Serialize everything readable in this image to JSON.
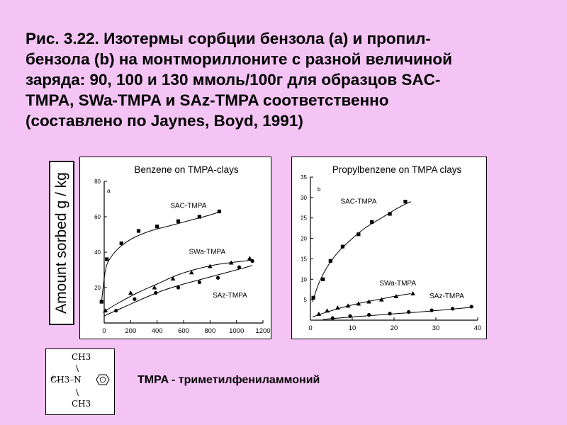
{
  "caption_lines": [
    "Рис. 3.22. Изотермы сорбции бензола (а) и пропил-",
    "бензола (b) на монтмориллоните с разной величиной",
    "заряда: 90, 100 и 130 ммоль/100г для образцов SAC-",
    "TMPA, SWa-TMPA и  SAz-TMPA соответственно",
    "(составлено по Jaynes, Boyd, 1991)"
  ],
  "y_axis_shared_label": "Amount sorbed  g / kg",
  "formula": {
    "top": "CH3",
    "middle_left": "CH3–N",
    "charge": "+",
    "bottom": "CH3",
    "ring": "benzene-ring-icon"
  },
  "tmpa_note": "TMPA - триметилфениламмоний",
  "chart_data": [
    {
      "type": "scatter",
      "title": "Benzene on TMPA-clays",
      "panel_letter": "a",
      "xlim": [
        0,
        1200
      ],
      "ylim": [
        0,
        80
      ],
      "xticks": [
        0,
        200,
        400,
        600,
        800,
        1000,
        1200
      ],
      "yticks": [
        0,
        20,
        40,
        60,
        80
      ],
      "xtick_labels": [
        "0",
        "200",
        "400",
        "600",
        "800",
        "1000",
        "1200"
      ],
      "ytick_labels": [
        "",
        "20",
        "40",
        "60",
        "80"
      ],
      "series": [
        {
          "name": "SAC-TMPA",
          "marker": "square",
          "points": [
            [
              -20,
              12
            ],
            [
              20,
              36
            ],
            [
              130,
              45
            ],
            [
              260,
              52
            ],
            [
              400,
              54.5
            ],
            [
              560,
              57.5
            ],
            [
              720,
              60
            ],
            [
              870,
              63
            ]
          ],
          "curve": [
            [
              -20,
              12
            ],
            [
              10,
              30
            ],
            [
              50,
              37
            ],
            [
              120,
              43
            ],
            [
              220,
              48
            ],
            [
              350,
              52
            ],
            [
              500,
              55
            ],
            [
              650,
              58
            ],
            [
              800,
              61
            ],
            [
              880,
              63
            ]
          ],
          "label": {
            "text": "SAC-TMPA",
            "x": 500,
            "y": 65
          }
        },
        {
          "name": "SWa-TMPA",
          "marker": "triangle",
          "points": [
            [
              10,
              7
            ],
            [
              200,
              17
            ],
            [
              380,
              20
            ],
            [
              520,
              25
            ],
            [
              660,
              28.5
            ],
            [
              800,
              32
            ],
            [
              960,
              34
            ],
            [
              1100,
              36.5
            ]
          ],
          "curve": [
            [
              -10,
              6
            ],
            [
              100,
              11
            ],
            [
              250,
              17
            ],
            [
              400,
              22
            ],
            [
              550,
              27
            ],
            [
              700,
              30.5
            ],
            [
              850,
              33
            ],
            [
              1000,
              34.5
            ],
            [
              1120,
              35.5
            ]
          ],
          "label": {
            "text": "SWa-TMPA",
            "x": 640,
            "y": 39
          }
        },
        {
          "name": "SAz-TMPA",
          "marker": "circle",
          "points": [
            [
              90,
              7
            ],
            [
              230,
              13.5
            ],
            [
              390,
              17
            ],
            [
              560,
              20
            ],
            [
              720,
              23
            ],
            [
              860,
              25.5
            ],
            [
              1020,
              31.5
            ],
            [
              1120,
              35
            ]
          ],
          "curve": [
            [
              0,
              4
            ],
            [
              150,
              9
            ],
            [
              300,
              14
            ],
            [
              450,
              18.5
            ],
            [
              600,
              22
            ],
            [
              750,
              25
            ],
            [
              900,
              28
            ],
            [
              1050,
              31
            ],
            [
              1120,
              32.5
            ]
          ],
          "label": {
            "text": "SAz-TMPA",
            "x": 820,
            "y": 14.5
          }
        }
      ]
    },
    {
      "type": "scatter",
      "title": "Propylbenzene on TMPA clays",
      "panel_letter": "b",
      "xlim": [
        0,
        40
      ],
      "ylim": [
        0,
        35
      ],
      "xticks": [
        0,
        10,
        20,
        30,
        40
      ],
      "yticks": [
        0,
        5,
        10,
        15,
        20,
        25,
        30,
        35
      ],
      "xtick_labels": [
        "0",
        "10",
        "20",
        "30",
        "40"
      ],
      "ytick_labels": [
        "",
        "5",
        "10",
        "15",
        "20",
        "25",
        "30",
        "35"
      ],
      "series": [
        {
          "name": "SAC-TMPA",
          "marker": "square",
          "points": [
            [
              0.7,
              5.5
            ],
            [
              3,
              10
            ],
            [
              4.8,
              14.5
            ],
            [
              7.7,
              18
            ],
            [
              11.5,
              21
            ],
            [
              14.7,
              24
            ],
            [
              19,
              26
            ],
            [
              22.7,
              29
            ]
          ],
          "curve": [
            [
              0.5,
              4.5
            ],
            [
              2,
              9
            ],
            [
              4,
              13
            ],
            [
              6.5,
              16.5
            ],
            [
              9.5,
              19.5
            ],
            [
              13,
              22.5
            ],
            [
              17,
              25
            ],
            [
              21,
              27.5
            ],
            [
              24,
              29
            ]
          ],
          "label": {
            "text": "SAC-TMPA",
            "x": 7.2,
            "y": 28.5
          }
        },
        {
          "name": "SWa-TMPA",
          "marker": "triangle",
          "points": [
            [
              2,
              1.5
            ],
            [
              4,
              2.3
            ],
            [
              6.5,
              3
            ],
            [
              9,
              3.5
            ],
            [
              11.5,
              4
            ],
            [
              14,
              4.5
            ],
            [
              17,
              5
            ],
            [
              20.5,
              5.8
            ],
            [
              24.5,
              6.5
            ]
          ],
          "curve": [
            [
              0.5,
              0.8
            ],
            [
              4,
              2
            ],
            [
              8,
              3.2
            ],
            [
              12,
              4.2
            ],
            [
              16,
              5
            ],
            [
              20,
              5.8
            ],
            [
              24,
              6.5
            ]
          ],
          "label": {
            "text": "SWa-TMPA",
            "x": 16.5,
            "y": 8.5
          }
        },
        {
          "name": "SAz-TMPA",
          "marker": "circle",
          "points": [
            [
              5.3,
              0.5
            ],
            [
              9.5,
              1
            ],
            [
              14,
              1.3
            ],
            [
              19,
              1.6
            ],
            [
              23.5,
              2
            ],
            [
              29,
              2.4
            ],
            [
              34,
              2.8
            ],
            [
              38.5,
              3.3
            ]
          ],
          "curve": [
            [
              3,
              0.2
            ],
            [
              10,
              0.8
            ],
            [
              18,
              1.4
            ],
            [
              26,
              2
            ],
            [
              34,
              2.7
            ],
            [
              39,
              3.2
            ]
          ],
          "label": {
            "text": "SAz-TMPA",
            "x": 28.5,
            "y": 5.4
          }
        }
      ]
    }
  ]
}
